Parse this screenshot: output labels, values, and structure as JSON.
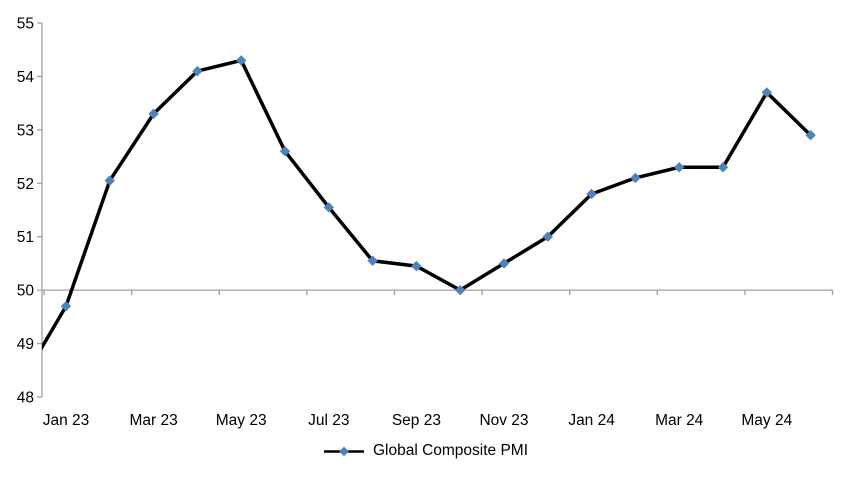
{
  "chart_data": {
    "type": "line",
    "title": "",
    "xlabel": "",
    "ylabel": "",
    "series": [
      {
        "name": "Global Composite PMI",
        "categories": [
          "Dec 22",
          "Jan 23",
          "Feb 23",
          "Mar 23",
          "Apr 23",
          "May 23",
          "Jun 23",
          "Jul 23",
          "Aug 23",
          "Sep 23",
          "Oct 23",
          "Nov 23",
          "Dec 23",
          "Jan 24",
          "Feb 24",
          "Mar 24",
          "Apr 24",
          "May 24",
          "Jun 24"
        ],
        "values": [
          48.3,
          49.7,
          52.05,
          53.3,
          54.1,
          54.3,
          52.6,
          51.55,
          50.55,
          50.45,
          50.0,
          50.5,
          51.0,
          51.8,
          52.1,
          52.3,
          52.3,
          53.7,
          52.9
        ]
      }
    ],
    "x_tick_labels": [
      "Jan 23",
      "Mar 23",
      "May 23",
      "Jul 23",
      "Sep 23",
      "Nov 23",
      "Jan 24",
      "Mar 24",
      "May 24"
    ],
    "y_ticks": [
      48,
      49,
      50,
      51,
      52,
      53,
      54,
      55
    ],
    "ylim": [
      48,
      55
    ],
    "x_axis_cross_value": 50,
    "first_point_clipped_at_left": true,
    "grid": "off",
    "legend_position": "bottom-center",
    "marker_shape": "diamond",
    "colors": {
      "series_line": "#000000",
      "marker": "#4f81bd",
      "axis": "#a0a0a0",
      "label_text": "#000000",
      "background": "#ffffff"
    }
  },
  "legend": {
    "label": "Global Composite PMI"
  }
}
